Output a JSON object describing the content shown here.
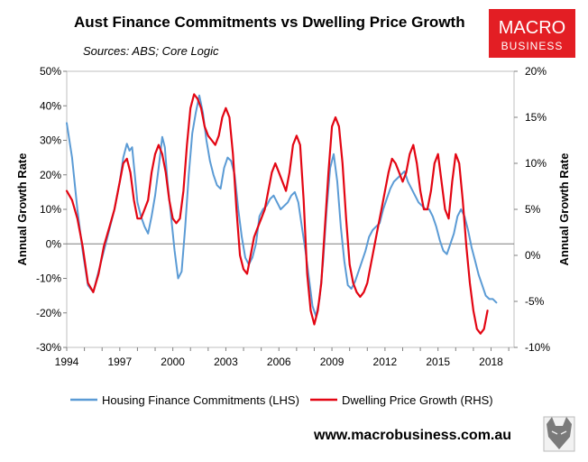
{
  "page": {
    "title": "Aust Finance Commitments vs Dwelling Price Growth",
    "subtitle": "Sources: ABS; Core Logic",
    "logo": {
      "line1": "MACRO",
      "line2": "BUSINESS",
      "color": "#e31e24"
    },
    "url": "www.macrobusiness.com.au",
    "wolf_logo": "wolf-head-logo"
  },
  "chart_data": {
    "type": "line",
    "title": "Aust Finance Commitments vs Dwelling Price Growth",
    "x_ticks": [
      "1994",
      "1997",
      "2000",
      "2003",
      "2006",
      "2009",
      "2012",
      "2015",
      "2018"
    ],
    "xlim": [
      1994,
      2019.3
    ],
    "ylabel_left": "Annual Growth Rate",
    "ylabel_right": "Annual Growth Rate",
    "y_left": {
      "min": -30,
      "max": 50,
      "ticks": [
        "50%",
        "40%",
        "30%",
        "20%",
        "10%",
        "0%",
        "-10%",
        "-20%",
        "-30%"
      ]
    },
    "y_right": {
      "min": -10,
      "max": 20,
      "ticks": [
        "20%",
        "15%",
        "10%",
        "5%",
        "0%",
        "-5%",
        "-10%"
      ]
    },
    "grid": false,
    "legend_position": "bottom",
    "series": [
      {
        "name": "Housing Finance Commitments (LHS)",
        "axis": "left",
        "color": "#5b9bd5",
        "points": [
          [
            1994.0,
            35
          ],
          [
            1994.3,
            25
          ],
          [
            1994.6,
            10
          ],
          [
            1994.9,
            -2
          ],
          [
            1995.2,
            -12
          ],
          [
            1995.5,
            -14
          ],
          [
            1995.8,
            -8
          ],
          [
            1996.1,
            -2
          ],
          [
            1996.4,
            4
          ],
          [
            1996.7,
            10
          ],
          [
            1997.0,
            18
          ],
          [
            1997.2,
            25
          ],
          [
            1997.4,
            29
          ],
          [
            1997.55,
            27
          ],
          [
            1997.7,
            28
          ],
          [
            1997.85,
            20
          ],
          [
            1998.0,
            12
          ],
          [
            1998.2,
            8
          ],
          [
            1998.4,
            5
          ],
          [
            1998.6,
            3
          ],
          [
            1998.8,
            8
          ],
          [
            1999.0,
            14
          ],
          [
            1999.2,
            22
          ],
          [
            1999.4,
            31
          ],
          [
            1999.55,
            28
          ],
          [
            1999.7,
            18
          ],
          [
            1999.9,
            8
          ],
          [
            2000.1,
            -2
          ],
          [
            2000.3,
            -10
          ],
          [
            2000.5,
            -8
          ],
          [
            2000.7,
            5
          ],
          [
            2000.9,
            20
          ],
          [
            2001.1,
            32
          ],
          [
            2001.3,
            38
          ],
          [
            2001.5,
            43
          ],
          [
            2001.7,
            38
          ],
          [
            2001.9,
            30
          ],
          [
            2002.1,
            24
          ],
          [
            2002.3,
            20
          ],
          [
            2002.5,
            17
          ],
          [
            2002.7,
            16
          ],
          [
            2002.9,
            22
          ],
          [
            2003.1,
            25
          ],
          [
            2003.3,
            24
          ],
          [
            2003.5,
            20
          ],
          [
            2003.7,
            10
          ],
          [
            2003.9,
            2
          ],
          [
            2004.1,
            -4
          ],
          [
            2004.3,
            -6
          ],
          [
            2004.5,
            -4
          ],
          [
            2004.7,
            0
          ],
          [
            2004.9,
            8
          ],
          [
            2005.1,
            10
          ],
          [
            2005.3,
            11
          ],
          [
            2005.5,
            13
          ],
          [
            2005.7,
            14
          ],
          [
            2005.9,
            12
          ],
          [
            2006.1,
            10
          ],
          [
            2006.3,
            11
          ],
          [
            2006.5,
            12
          ],
          [
            2006.7,
            14
          ],
          [
            2006.9,
            15
          ],
          [
            2007.1,
            12
          ],
          [
            2007.3,
            5
          ],
          [
            2007.5,
            -2
          ],
          [
            2007.7,
            -10
          ],
          [
            2007.9,
            -18
          ],
          [
            2008.1,
            -21
          ],
          [
            2008.3,
            -16
          ],
          [
            2008.5,
            -5
          ],
          [
            2008.7,
            10
          ],
          [
            2008.9,
            22
          ],
          [
            2009.1,
            26
          ],
          [
            2009.3,
            18
          ],
          [
            2009.5,
            5
          ],
          [
            2009.7,
            -5
          ],
          [
            2009.9,
            -12
          ],
          [
            2010.1,
            -13
          ],
          [
            2010.3,
            -11
          ],
          [
            2010.5,
            -8
          ],
          [
            2010.7,
            -5
          ],
          [
            2010.9,
            -2
          ],
          [
            2011.1,
            2
          ],
          [
            2011.3,
            4
          ],
          [
            2011.5,
            5
          ],
          [
            2011.7,
            6
          ],
          [
            2011.9,
            10
          ],
          [
            2012.1,
            13
          ],
          [
            2012.3,
            16
          ],
          [
            2012.5,
            18
          ],
          [
            2012.7,
            19
          ],
          [
            2012.9,
            20
          ],
          [
            2013.1,
            21
          ],
          [
            2013.3,
            18
          ],
          [
            2013.5,
            16
          ],
          [
            2013.7,
            14
          ],
          [
            2013.9,
            12
          ],
          [
            2014.1,
            11
          ],
          [
            2014.3,
            10
          ],
          [
            2014.5,
            10
          ],
          [
            2014.7,
            8
          ],
          [
            2014.9,
            5
          ],
          [
            2015.1,
            1
          ],
          [
            2015.3,
            -2
          ],
          [
            2015.5,
            -3
          ],
          [
            2015.7,
            0
          ],
          [
            2015.9,
            3
          ],
          [
            2016.1,
            8
          ],
          [
            2016.3,
            10
          ],
          [
            2016.5,
            8
          ],
          [
            2016.7,
            4
          ],
          [
            2016.9,
            -1
          ],
          [
            2017.1,
            -5
          ],
          [
            2017.3,
            -9
          ],
          [
            2017.5,
            -12
          ],
          [
            2017.7,
            -15
          ],
          [
            2017.9,
            -16
          ],
          [
            2018.1,
            -16
          ],
          [
            2018.3,
            -17
          ]
        ]
      },
      {
        "name": "Dwelling Price Growth (RHS)",
        "axis": "right",
        "color": "#e30613",
        "points": [
          [
            1994.0,
            7
          ],
          [
            1994.3,
            6
          ],
          [
            1994.6,
            4
          ],
          [
            1994.9,
            1
          ],
          [
            1995.2,
            -3
          ],
          [
            1995.5,
            -4
          ],
          [
            1995.8,
            -2
          ],
          [
            1996.1,
            1
          ],
          [
            1996.4,
            3
          ],
          [
            1996.7,
            5
          ],
          [
            1997.0,
            8
          ],
          [
            1997.2,
            10
          ],
          [
            1997.4,
            10.5
          ],
          [
            1997.6,
            9
          ],
          [
            1997.8,
            6
          ],
          [
            1998.0,
            4
          ],
          [
            1998.2,
            4
          ],
          [
            1998.4,
            5
          ],
          [
            1998.6,
            6
          ],
          [
            1998.8,
            9
          ],
          [
            1999.0,
            11
          ],
          [
            1999.2,
            12
          ],
          [
            1999.4,
            11
          ],
          [
            1999.6,
            9
          ],
          [
            1999.8,
            6
          ],
          [
            2000.0,
            4
          ],
          [
            2000.2,
            3.5
          ],
          [
            2000.4,
            4
          ],
          [
            2000.6,
            7
          ],
          [
            2000.8,
            12
          ],
          [
            2001.0,
            16
          ],
          [
            2001.2,
            17.5
          ],
          [
            2001.4,
            17
          ],
          [
            2001.6,
            16
          ],
          [
            2001.8,
            14
          ],
          [
            2002.0,
            13
          ],
          [
            2002.2,
            12.5
          ],
          [
            2002.4,
            12
          ],
          [
            2002.6,
            13
          ],
          [
            2002.8,
            15
          ],
          [
            2003.0,
            16
          ],
          [
            2003.2,
            15
          ],
          [
            2003.4,
            11
          ],
          [
            2003.6,
            5
          ],
          [
            2003.8,
            0
          ],
          [
            2004.0,
            -1.5
          ],
          [
            2004.2,
            -2
          ],
          [
            2004.4,
            0
          ],
          [
            2004.6,
            2
          ],
          [
            2004.8,
            3
          ],
          [
            2005.0,
            4
          ],
          [
            2005.2,
            5
          ],
          [
            2005.4,
            7
          ],
          [
            2005.6,
            9
          ],
          [
            2005.8,
            10
          ],
          [
            2006.0,
            9
          ],
          [
            2006.2,
            8
          ],
          [
            2006.4,
            7
          ],
          [
            2006.6,
            9
          ],
          [
            2006.8,
            12
          ],
          [
            2007.0,
            13
          ],
          [
            2007.2,
            12
          ],
          [
            2007.4,
            6
          ],
          [
            2007.6,
            -2
          ],
          [
            2007.8,
            -6
          ],
          [
            2008.0,
            -7.5
          ],
          [
            2008.2,
            -6
          ],
          [
            2008.4,
            -3
          ],
          [
            2008.6,
            3
          ],
          [
            2008.8,
            9
          ],
          [
            2009.0,
            14
          ],
          [
            2009.2,
            15
          ],
          [
            2009.4,
            14
          ],
          [
            2009.6,
            10
          ],
          [
            2009.8,
            4
          ],
          [
            2010.0,
            -1
          ],
          [
            2010.2,
            -3
          ],
          [
            2010.4,
            -4
          ],
          [
            2010.6,
            -4.5
          ],
          [
            2010.8,
            -4
          ],
          [
            2011.0,
            -3
          ],
          [
            2011.2,
            -1
          ],
          [
            2011.4,
            1
          ],
          [
            2011.6,
            3
          ],
          [
            2011.8,
            5
          ],
          [
            2012.0,
            7
          ],
          [
            2012.2,
            9
          ],
          [
            2012.4,
            10.5
          ],
          [
            2012.6,
            10
          ],
          [
            2012.8,
            9
          ],
          [
            2013.0,
            8
          ],
          [
            2013.2,
            9
          ],
          [
            2013.4,
            11
          ],
          [
            2013.6,
            12
          ],
          [
            2013.8,
            10
          ],
          [
            2014.0,
            7
          ],
          [
            2014.2,
            5
          ],
          [
            2014.4,
            5
          ],
          [
            2014.6,
            7
          ],
          [
            2014.8,
            10
          ],
          [
            2015.0,
            11
          ],
          [
            2015.2,
            8
          ],
          [
            2015.4,
            5
          ],
          [
            2015.6,
            4
          ],
          [
            2015.8,
            8
          ],
          [
            2016.0,
            11
          ],
          [
            2016.2,
            10
          ],
          [
            2016.4,
            6
          ],
          [
            2016.6,
            1
          ],
          [
            2016.8,
            -3
          ],
          [
            2017.0,
            -6
          ],
          [
            2017.2,
            -8
          ],
          [
            2017.4,
            -8.5
          ],
          [
            2017.6,
            -8
          ],
          [
            2017.8,
            -6
          ]
        ]
      }
    ]
  }
}
